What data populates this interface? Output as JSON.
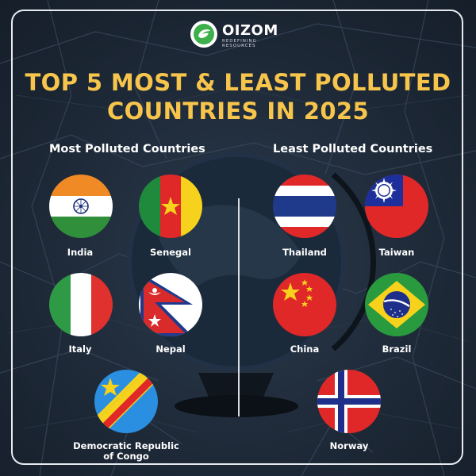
{
  "brand": {
    "name": "OIZOM",
    "tagline": "REDEFINING RESOURCES"
  },
  "title": {
    "line1": "TOP 5 MOST & LEAST POLLUTED",
    "line2": "COUNTRIES IN 2025"
  },
  "sections": {
    "most": "Most Polluted Countries",
    "least": "Least Polluted Countries"
  },
  "most_polluted": [
    "India",
    "Senegal",
    "Italy",
    "Nepal"
  ],
  "most_polluted_last": {
    "line1": "Democratic Republic",
    "line2": "of Congo"
  },
  "least_polluted": [
    "Thailand",
    "Taiwan",
    "China",
    "Brazil",
    "Norway"
  ],
  "colors": {
    "title": "#f7c54b",
    "text": "#ffffff",
    "brand_green": "#3db04b",
    "background": "#1d2836"
  },
  "icons": [
    "leaf-logo-icon",
    "india-flag-icon",
    "senegal-flag-icon",
    "italy-flag-icon",
    "nepal-flag-icon",
    "drc-flag-icon",
    "thailand-flag-icon",
    "taiwan-flag-icon",
    "china-flag-icon",
    "brazil-flag-icon",
    "norway-flag-icon",
    "globe-icon"
  ]
}
